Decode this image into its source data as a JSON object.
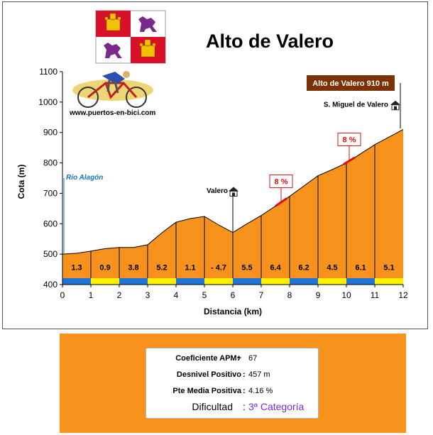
{
  "title": "Alto de Valero",
  "website": "www.puertos-en-bici.com",
  "summit_label": "Alto de Valero 910 m",
  "colors": {
    "profile_fill": "#f7931d",
    "profile_outline": "#000000",
    "segment_blue": "#1e73d6",
    "segment_yellow": "#ffef00",
    "summit_box": "#7b3306",
    "gradient_label": "#d81010",
    "river_label": "#1a75c0",
    "panel": "#f7931d",
    "difficulty": "#7a2bd6"
  },
  "chart_data": {
    "type": "area",
    "xlabel": "Distancia (km)",
    "ylabel": "Cota (m)",
    "xlim": [
      0,
      12
    ],
    "ylim": [
      400,
      1100
    ],
    "x_ticks": [
      "0",
      "1",
      "2",
      "3",
      "4",
      "5",
      "6",
      "7",
      "8",
      "9",
      "10",
      "11",
      "12"
    ],
    "y_ticks": [
      "400",
      "500",
      "600",
      "700",
      "800",
      "900",
      "1000",
      "1100"
    ],
    "grid": false,
    "profile": [
      [
        0,
        500
      ],
      [
        0.5,
        503
      ],
      [
        1,
        510
      ],
      [
        1.5,
        518
      ],
      [
        2,
        522
      ],
      [
        2.5,
        522
      ],
      [
        3,
        531
      ],
      [
        3.5,
        570
      ],
      [
        4,
        605
      ],
      [
        4.5,
        617
      ],
      [
        5,
        624
      ],
      [
        5.5,
        596
      ],
      [
        6,
        571
      ],
      [
        6.5,
        600
      ],
      [
        7,
        627
      ],
      [
        7.5,
        658
      ],
      [
        8,
        690
      ],
      [
        8.5,
        724
      ],
      [
        9,
        758
      ],
      [
        9.5,
        778
      ],
      [
        10,
        800
      ],
      [
        10.5,
        830
      ],
      [
        11,
        860
      ],
      [
        11.5,
        885
      ],
      [
        12,
        910
      ]
    ],
    "segment_gradients": [
      "1.3",
      "0.9",
      "3.8",
      "5.2",
      "1.1",
      "- 4.7",
      "5.5",
      "6.4",
      "6.2",
      "4.5",
      "6.1",
      "5.1"
    ],
    "max_gradient_markers": [
      {
        "label": "8 %",
        "from": 7.5,
        "to": 7.9
      },
      {
        "label": "8 %",
        "from": 9.9,
        "to": 10.3
      }
    ],
    "annotations": [
      {
        "text": "Río Alagón",
        "x": 0
      },
      {
        "text": "Valero",
        "x": 6
      },
      {
        "text": "S. Miguel de Valero",
        "x": 12
      }
    ]
  },
  "stats": {
    "apm_label": "Coeficiente APM+",
    "apm_value": "67",
    "desnivel_label": "Desnivel Positivo",
    "desnivel_value": "457 m",
    "pte_label": "Pte Media Positiva",
    "pte_value": "4.16 %",
    "dificultad_label": "Dificultad",
    "dificultad_value": "3ª Categoría"
  }
}
